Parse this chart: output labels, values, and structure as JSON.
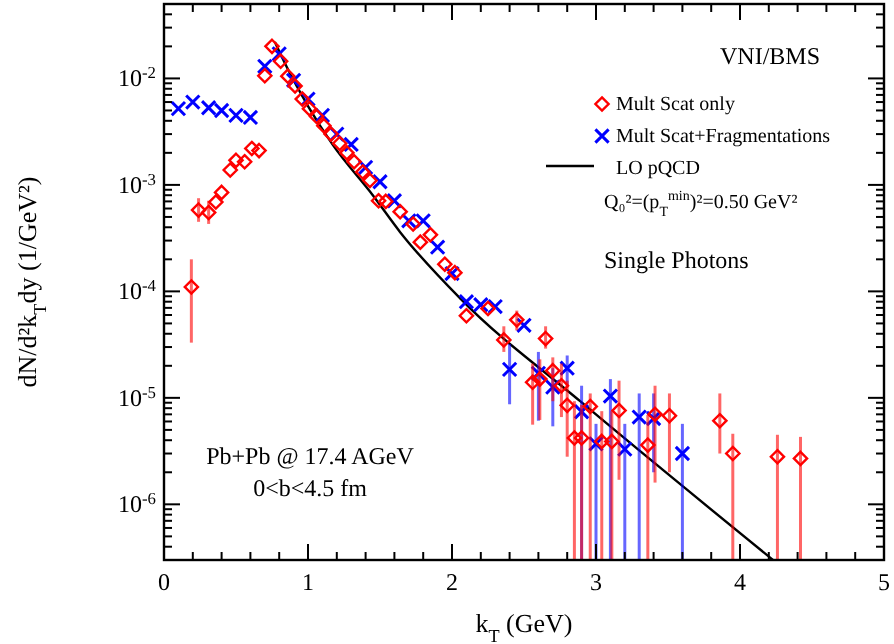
{
  "chart_data": {
    "type": "scatter",
    "xlabel": "k$_{T}$ (GeV)",
    "ylabel": "dN/d²k$_{T}$dy (1/GeV²)",
    "log": "y",
    "xlim": [
      0,
      5
    ],
    "ylim": [
      3e-07,
      0.05
    ],
    "xticks": [
      0,
      {
        "value": 0.2,
        "label": null
      },
      {
        "value": 0.4,
        "label": null
      },
      {
        "value": 0.6,
        "label": null
      },
      {
        "value": 0.8,
        "label": null
      },
      1,
      {
        "value": 1.2,
        "label": null
      },
      {
        "value": 1.4,
        "label": null
      },
      {
        "value": 1.6,
        "label": null
      },
      {
        "value": 1.8,
        "label": null
      },
      2,
      {
        "value": 2.2,
        "label": null
      },
      {
        "value": 2.4,
        "label": null
      },
      {
        "value": 2.6,
        "label": null
      },
      {
        "value": 2.8,
        "label": null
      },
      3,
      {
        "value": 3.2,
        "label": null
      },
      {
        "value": 3.4,
        "label": null
      },
      {
        "value": 3.6,
        "label": null
      },
      {
        "value": 3.8,
        "label": null
      },
      4,
      {
        "value": 4.2,
        "label": null
      },
      {
        "value": 4.4,
        "label": null
      },
      {
        "value": 4.6,
        "label": null
      },
      {
        "value": 4.8,
        "label": null
      },
      5
    ],
    "yticks": [
      {
        "value": 4e-07,
        "label": null
      },
      {
        "value": 5e-07,
        "label": null
      },
      {
        "value": 6e-07,
        "label": null
      },
      {
        "value": 7e-07,
        "label": null
      },
      {
        "value": 8e-07,
        "label": null
      },
      {
        "value": 9e-07,
        "label": null
      },
      {
        "value": 1e-06,
        "label": "10$^{-6}$"
      },
      {
        "value": 2e-06,
        "label": null
      },
      {
        "value": 3e-06,
        "label": null
      },
      {
        "value": 4e-06,
        "label": null
      },
      {
        "value": 5e-06,
        "label": null
      },
      {
        "value": 6e-06,
        "label": null
      },
      {
        "value": 7e-06,
        "label": null
      },
      {
        "value": 8e-06,
        "label": null
      },
      {
        "value": 9e-06,
        "label": null
      },
      {
        "value": 1e-05,
        "label": "10$^{-5}$"
      },
      {
        "value": 2e-05,
        "label": null
      },
      {
        "value": 3e-05,
        "label": null
      },
      {
        "value": 4e-05,
        "label": null
      },
      {
        "value": 5e-05,
        "label": null
      },
      {
        "value": 6e-05,
        "label": null
      },
      {
        "value": 7e-05,
        "label": null
      },
      {
        "value": 8e-05,
        "label": null
      },
      {
        "value": 9e-05,
        "label": null
      },
      {
        "value": 0.0001,
        "label": "10$^{-4}$"
      },
      {
        "value": 0.0002,
        "label": null
      },
      {
        "value": 0.0003,
        "label": null
      },
      {
        "value": 0.0004,
        "label": null
      },
      {
        "value": 0.0005,
        "label": null
      },
      {
        "value": 0.0006,
        "label": null
      },
      {
        "value": 0.0007,
        "label": null
      },
      {
        "value": 0.0008,
        "label": null
      },
      {
        "value": 0.0009,
        "label": null
      },
      {
        "value": 0.001,
        "label": "10$^{-3}$"
      },
      {
        "value": 0.002,
        "label": null
      },
      {
        "value": 0.003,
        "label": null
      },
      {
        "value": 0.004,
        "label": null
      },
      {
        "value": 0.005,
        "label": null
      },
      {
        "value": 0.006,
        "label": null
      },
      {
        "value": 0.007,
        "label": null
      },
      {
        "value": 0.008,
        "label": null
      },
      {
        "value": 0.009,
        "label": null
      },
      {
        "value": 0.01,
        "label": "10$^{-2}$"
      },
      {
        "value": 0.02,
        "label": null
      },
      {
        "value": 0.03,
        "label": null
      },
      {
        "value": 0.04,
        "label": null
      }
    ],
    "legend": "top right",
    "grid": false,
    "annotations": [
      "VNI/BMS",
      "Q₀²=(p$_{T}$$^{min}$)²=0.50 GeV²",
      "Single Photons",
      "Pb+Pb @ 17.4 AGeV",
      "0<b<4.5 fm"
    ],
    "series": [
      {
        "name": "Mult Scat only",
        "color": "#ff0000",
        "marker": "diamond",
        "x": [
          0.19,
          0.24,
          0.31,
          0.36,
          0.4,
          0.46,
          0.5,
          0.56,
          0.61,
          0.66,
          0.7,
          0.75,
          0.81,
          0.86,
          0.91,
          0.96,
          1.01,
          1.06,
          1.11,
          1.16,
          1.22,
          1.27,
          1.32,
          1.38,
          1.43,
          1.49,
          1.54,
          1.64,
          1.73,
          1.78,
          1.85,
          1.95,
          2.02,
          2.1,
          2.25,
          2.36,
          2.45,
          2.56,
          2.61,
          2.65,
          2.7,
          2.76,
          2.8,
          2.85,
          2.9,
          2.96,
          3.04,
          3.11,
          3.16,
          3.36,
          3.41,
          3.51,
          3.86,
          3.95,
          4.26,
          4.42
        ],
        "values": [
          0.00011,
          0.00058,
          0.00055,
          0.00069,
          0.00085,
          0.00138,
          0.0017,
          0.00165,
          0.0022,
          0.0021,
          0.0106,
          0.02,
          0.0145,
          0.0105,
          0.0085,
          0.0064,
          0.0052,
          0.0044,
          0.0036,
          0.003,
          0.00245,
          0.002,
          0.00165,
          0.00132,
          0.0011,
          0.00071,
          0.0007,
          0.00056,
          0.00043,
          0.00029,
          0.00034,
          0.00018,
          0.00015,
          5.9e-05,
          6.9e-05,
          3.5e-05,
          5.4e-05,
          1.4e-05,
          1.5e-05,
          3.6e-05,
          1.8e-05,
          1.3e-05,
          8.5e-06,
          4.2e-06,
          4.2e-06,
          8.3e-06,
          3.9e-06,
          3.9e-06,
          7.6e-06,
          3.6e-06,
          7e-06,
          6.8e-06,
          6.1e-06,
          3e-06,
          2.8e-06,
          2.7e-06
        ],
        "errors": [
          [
            3.3e-05,
            0.0002
          ],
          [
            0.00045,
            0.00075
          ],
          [
            0.00043,
            0.00071
          ],
          null,
          null,
          null,
          null,
          null,
          null,
          null,
          null,
          null,
          null,
          null,
          null,
          null,
          null,
          null,
          null,
          null,
          null,
          null,
          null,
          null,
          null,
          null,
          null,
          null,
          null,
          null,
          null,
          null,
          null,
          null,
          null,
          [
            2.7e-05,
            4.7e-05
          ],
          [
            4.3e-05,
            6.6e-05
          ],
          [
            5.6e-06,
            2.1e-05
          ],
          [
            6.2e-06,
            2.3e-05
          ],
          [
            2.9e-05,
            4.7e-05
          ],
          [
            9.3e-06,
            2.4e-05
          ],
          [
            6.6e-06,
            2.1e-05
          ],
          [
            2.8e-06,
            1.45e-05
          ],
          [
            3e-07,
            9.3e-06
          ],
          [
            3e-07,
            8.6e-06
          ],
          [
            3e-07,
            1.1e-05
          ],
          [
            3e-07,
            7.5e-06
          ],
          [
            3e-07,
            7.5e-06
          ],
          [
            1.7e-06,
            1.45e-05
          ],
          [
            3e-07,
            6.9e-06
          ],
          [
            1.6e-06,
            1.3e-05
          ],
          [
            2e-06,
            1.1e-05
          ],
          [
            3e-06,
            1.1e-05
          ],
          [
            3e-07,
            4.6e-06
          ],
          [
            3e-07,
            4.5e-06
          ],
          [
            3e-07,
            4.3e-06
          ]
        ]
      },
      {
        "name": "Mult Scat+Fragmentations",
        "color": "#0000ff",
        "marker": "cross",
        "x": [
          0.1,
          0.2,
          0.31,
          0.4,
          0.5,
          0.6,
          0.7,
          0.8,
          0.9,
          1.0,
          1.1,
          1.2,
          1.3,
          1.4,
          1.5,
          1.6,
          1.7,
          1.8,
          1.9,
          2.0,
          2.1,
          2.2,
          2.3,
          2.4,
          2.5,
          2.6,
          2.7,
          2.8,
          2.9,
          3.0,
          3.1,
          3.2,
          3.3,
          3.4,
          3.6
        ],
        "values": [
          0.0052,
          0.006,
          0.0053,
          0.005,
          0.0045,
          0.0043,
          0.013,
          0.017,
          0.0096,
          0.0064,
          0.0045,
          0.003,
          0.0024,
          0.00146,
          0.00107,
          0.00071,
          0.00046,
          0.00046,
          0.00026,
          0.000147,
          8e-05,
          7.5e-05,
          7.2e-05,
          1.85e-05,
          4.8e-05,
          1.7e-05,
          1.26e-05,
          1.9e-05,
          7.4e-06,
          3.7e-06,
          1.04e-05,
          3.3e-06,
          6.6e-06,
          6.4e-06,
          3e-06
        ],
        "errors": [
          null,
          null,
          null,
          null,
          null,
          null,
          null,
          null,
          null,
          null,
          null,
          null,
          null,
          null,
          null,
          null,
          null,
          null,
          null,
          null,
          null,
          null,
          null,
          [
            8.7e-06,
            3.2e-05
          ],
          null,
          [
            6.1e-06,
            2.7e-05
          ],
          [
            5.4e-06,
            1.9e-05
          ],
          [
            1.3e-05,
            2.5e-05
          ],
          [
            3e-07,
            1.3e-05
          ],
          [
            3e-07,
            5.7e-06
          ],
          [
            3e-07,
            1.5e-05
          ],
          [
            3e-07,
            5.7e-06
          ],
          [
            3e-07,
            1.1e-05
          ],
          [
            2e-06,
            1.1e-05
          ],
          [
            3e-07,
            5.7e-06
          ]
        ]
      },
      {
        "name": "LO pQCD",
        "type": "line",
        "color": "#000000",
        "marker": "none",
        "line_style": "solid",
        "x": [
          0.77,
          0.85,
          1.0,
          1.17,
          1.45,
          1.64,
          2.06,
          2.89,
          4.23
        ],
        "values": [
          0.022,
          0.013,
          0.0055,
          0.0024,
          0.0008,
          0.00036,
          8.5e-05,
          9.3e-06,
          3e-07
        ]
      }
    ]
  }
}
